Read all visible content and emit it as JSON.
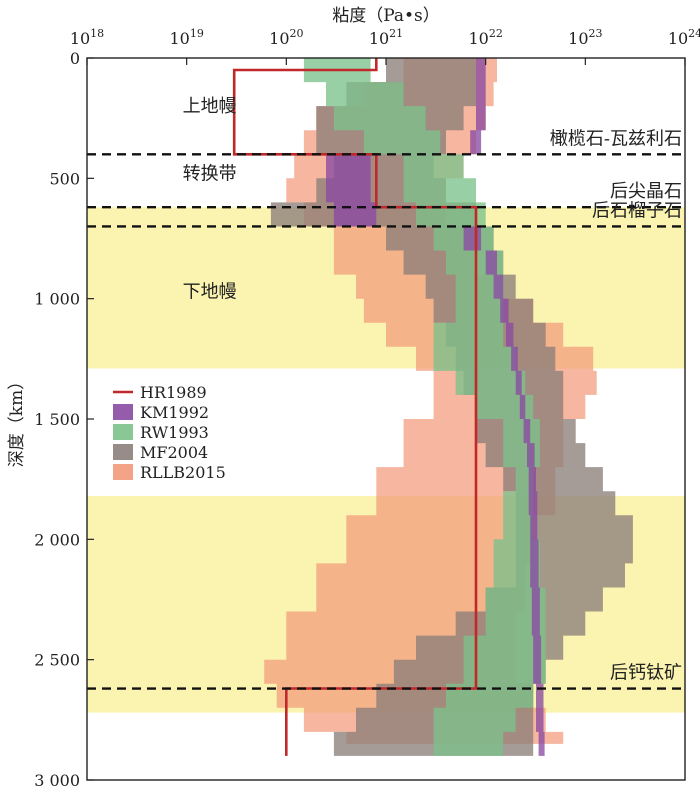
{
  "chart_data": {
    "type": "area",
    "title": "粘度（Pa•s）",
    "ylabel": "深度（km）",
    "x_scale": "log",
    "xlim": [
      1e+18,
      1e+24
    ],
    "ylim": [
      0,
      3000
    ],
    "x_ticks": [
      {
        "value": 1e+18,
        "base": "10",
        "exp": "18"
      },
      {
        "value": 1e+19,
        "base": "10",
        "exp": "19"
      },
      {
        "value": 1e+20,
        "base": "10",
        "exp": "20"
      },
      {
        "value": 1e+21,
        "base": "10",
        "exp": "21"
      },
      {
        "value": 1e+22,
        "base": "10",
        "exp": "22"
      },
      {
        "value": 1e+23,
        "base": "10",
        "exp": "23"
      },
      {
        "value": 1e+24,
        "base": "10",
        "exp": "24"
      }
    ],
    "y_ticks": [
      {
        "value": 0,
        "label": "0"
      },
      {
        "value": 500,
        "label": "500"
      },
      {
        "value": 1000,
        "label": "1 000"
      },
      {
        "value": 1500,
        "label": "1 500"
      },
      {
        "value": 2000,
        "label": "2 000"
      },
      {
        "value": 2500,
        "label": "2 500"
      },
      {
        "value": 3000,
        "label": "3 000"
      }
    ],
    "bands": [
      {
        "from": 620,
        "to": 1290,
        "color": "#fbf3b0"
      },
      {
        "from": 1820,
        "to": 2720,
        "color": "#fbf3b0"
      }
    ],
    "boundaries": [
      {
        "depth": 400,
        "label": "橄榄石-瓦兹利石"
      },
      {
        "depth": 620,
        "label": "后尖晶石"
      },
      {
        "depth": 700,
        "label": "后石榴子石"
      },
      {
        "depth": 2620,
        "label": "后钙钛矿"
      }
    ],
    "regions": [
      {
        "label": "上地幔",
        "depth": 200,
        "x": 1.7e+19
      },
      {
        "label": "转换带",
        "depth": 480,
        "x": 1.7e+19
      },
      {
        "label": "下地幔",
        "depth": 970,
        "x": 1.7e+19
      }
    ],
    "legend": {
      "placement": "middle-left",
      "entries": [
        "HR1989",
        "KM1992",
        "RW1993",
        "MF2004",
        "RLLB2015"
      ]
    },
    "series": [
      {
        "name": "RLLB2015",
        "kind": "range",
        "color": "#f29a7a",
        "depth": [
          0,
          100,
          200,
          300,
          400,
          500,
          600,
          700,
          800,
          900,
          1000,
          1100,
          1200,
          1300,
          1400,
          1500,
          1700,
          1900,
          2100,
          2300,
          2500,
          2600,
          2700,
          2800,
          2850
        ],
        "min": [
          1.5e+21,
          6e+20,
          2e+20,
          1.5e+20,
          1.2e+20,
          1e+20,
          1.5e+20,
          3e+20,
          3e+20,
          5e+20,
          6e+20,
          1e+21,
          2e+21,
          3e+21,
          3e+21,
          1.5e+21,
          8e+20,
          4e+20,
          2e+20,
          1e+20,
          6e+19,
          8e+19,
          1.5e+20,
          4e+20,
          1e+22
        ],
        "max": [
          1.3e+22,
          1.2e+22,
          1e+22,
          8e+21,
          6e+21,
          4e+21,
          4e+21,
          6e+21,
          8e+21,
          1.2e+22,
          3e+22,
          6e+22,
          1.2e+23,
          1.3e+23,
          1e+23,
          6e+22,
          5e+22,
          3e+22,
          2.5e+22,
          2e+22,
          2e+22,
          3e+22,
          4e+22,
          6e+22,
          5e+22
        ]
      },
      {
        "name": "MF2004",
        "kind": "range",
        "color": "#8c7f7a",
        "depth": [
          0,
          100,
          200,
          300,
          400,
          500,
          600,
          700,
          800,
          900,
          1000,
          1100,
          1200,
          1300,
          1400,
          1500,
          1600,
          1700,
          1800,
          1900,
          2000,
          2100,
          2200,
          2300,
          2400,
          2500,
          2600,
          2700,
          2800,
          2900
        ],
        "min": [
          1e+21,
          4e+20,
          2e+20,
          2e+20,
          3e+20,
          2e+20,
          7e+19,
          1e+21,
          1.5e+21,
          2.5e+21,
          3e+21,
          4e+21,
          5e+21,
          6e+21,
          8e+21,
          8e+21,
          1e+22,
          1.5e+22,
          2e+22,
          2e+22,
          2e+22,
          2e+22,
          1e+22,
          5e+21,
          2e+21,
          1.2e+21,
          8e+20,
          5e+20,
          3e+20,
          1.5e+20
        ],
        "max": [
          8e+21,
          8e+21,
          6e+21,
          4e+21,
          3e+21,
          4e+21,
          8e+21,
          1.2e+22,
          1.5e+22,
          2e+22,
          3e+22,
          4e+22,
          5e+22,
          6e+22,
          6e+22,
          8e+22,
          1e+23,
          1.5e+23,
          2e+23,
          3e+23,
          3e+23,
          2.5e+23,
          1.5e+23,
          1e+23,
          6e+22,
          4e+22,
          3e+22,
          3e+22,
          3e+22,
          2e+22
        ]
      },
      {
        "name": "RW1993",
        "kind": "range",
        "color": "#7cc28a",
        "depth": [
          0,
          100,
          200,
          300,
          400,
          500,
          600,
          700,
          800,
          900,
          1000,
          1100,
          1200,
          1300,
          1400,
          1500,
          1600,
          1700,
          1800,
          2000,
          2200,
          2400,
          2600,
          2700,
          2800,
          2900
        ],
        "min": [
          1.5e+20,
          2.5e+20,
          3e+20,
          6e+20,
          1.5e+21,
          1.5e+21,
          2e+21,
          3e+21,
          4e+21,
          5e+21,
          5e+21,
          3e+21,
          3e+21,
          5e+21,
          8e+21,
          1.5e+22,
          1.5e+22,
          2e+22,
          1.5e+22,
          1.2e+22,
          1e+22,
          6e+21,
          4e+21,
          3e+21,
          3e+21,
          3e+21
        ],
        "max": [
          7e+20,
          1.5e+21,
          2.5e+21,
          3.5e+21,
          6e+21,
          8e+21,
          1e+22,
          1.2e+22,
          1.5e+22,
          1.5e+22,
          1.5e+22,
          1.5e+22,
          2e+22,
          2.5e+22,
          3e+22,
          3.5e+22,
          3.5e+22,
          3e+22,
          3e+22,
          3.5e+22,
          4e+22,
          4e+22,
          3e+22,
          2e+22,
          1.5e+22,
          1.2e+22
        ]
      },
      {
        "name": "KM1992",
        "kind": "range",
        "color": "#8a4aa3",
        "depth": [
          0,
          100,
          200,
          300,
          400,
          500,
          600,
          700,
          800,
          900,
          1000,
          1100,
          1200,
          1300,
          1400,
          1500,
          1600,
          1700,
          1800,
          1900,
          2000,
          2200,
          2400,
          2600,
          2800,
          2900
        ],
        "min": [
          8e+21,
          8e+21,
          8e+21,
          7e+21,
          2.5e+20,
          2.5e+20,
          3e+20,
          6e+21,
          1e+22,
          1.2e+22,
          1.4e+22,
          1.6e+22,
          1.8e+22,
          2e+22,
          2.2e+22,
          2.4e+22,
          2.6e+22,
          2.7e+22,
          2.7e+22,
          2.8e+22,
          2.8e+22,
          2.9e+22,
          3e+22,
          3.2e+22,
          3.4e+22,
          3.4e+22
        ],
        "max": [
          1e+22,
          1e+22,
          1e+22,
          9e+21,
          7e+20,
          7e+20,
          8e+20,
          9e+21,
          1.3e+22,
          1.5e+22,
          1.7e+22,
          1.9e+22,
          2.1e+22,
          2.3e+22,
          2.5e+22,
          2.8e+22,
          3.1e+22,
          3.2e+22,
          3.3e+22,
          3.3e+22,
          3.4e+22,
          3.5e+22,
          3.6e+22,
          3.8e+22,
          3.9e+22,
          3.9e+22
        ]
      },
      {
        "name": "HR1989",
        "kind": "step",
        "color": "#c0282a",
        "points": [
          [
            8e+20,
            0
          ],
          [
            8e+20,
            50
          ],
          [
            3e+19,
            50
          ],
          [
            3e+19,
            400
          ],
          [
            8e+20,
            400
          ],
          [
            8e+20,
            620
          ],
          [
            8e+21,
            620
          ],
          [
            8e+21,
            2620
          ],
          [
            1e+20,
            2620
          ],
          [
            1e+20,
            2900
          ]
        ]
      }
    ]
  }
}
